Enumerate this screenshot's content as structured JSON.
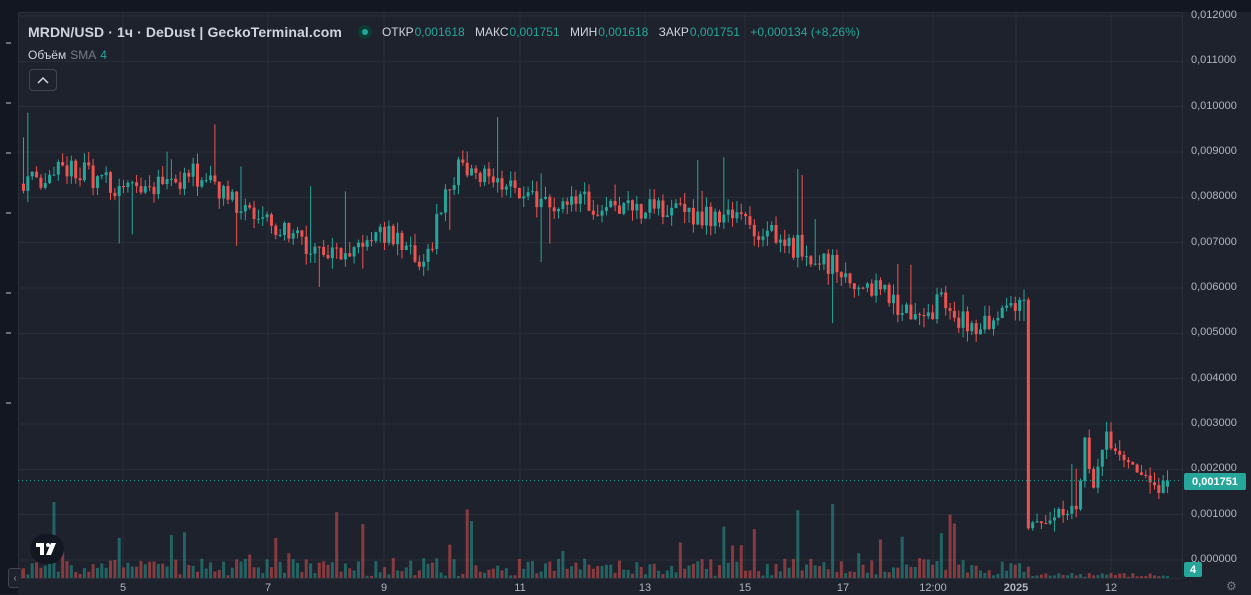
{
  "header": {
    "symbol_title": "MRDN/USD · 1ч · DeDust  |  GeckoTerminal.com",
    "ohlc": {
      "open_label": "ОТКР",
      "open": "0,001618",
      "high_label": "МАКС",
      "high": "0,001751",
      "low_label": "МИН",
      "low": "0,001618",
      "close_label": "ЗАКР",
      "close": "0,001751",
      "change": "+0,000134 (+8,26%)"
    }
  },
  "volume_legend": {
    "name": "Объём",
    "indicator": "SMA",
    "length": "4"
  },
  "price_axis": {
    "labels": [
      "0,012000",
      "0,011000",
      "0,010000",
      "0,009000",
      "0,008000",
      "0,007000",
      "0,006000",
      "0,005000",
      "0,004000",
      "0,003000",
      "0,002000",
      "0,001000",
      "0,000000"
    ],
    "last_price": "0,001751",
    "volume_badge": "4"
  },
  "time_axis": {
    "labels": [
      "5",
      "7",
      "9",
      "11",
      "13",
      "15",
      "17",
      "12:00",
      "2025",
      "12"
    ]
  },
  "colors": {
    "up": "#26a69a",
    "down": "#ef5350",
    "background": "#1e222d",
    "grid": "#2a2e39"
  },
  "icons": {
    "status": "market-open-dot",
    "collapse": "chevron-up-icon",
    "logo": "tradingview-logo-icon",
    "scroll": "chevron-left-icon",
    "settings": "gear-icon"
  },
  "chart_data": {
    "type": "candlestick",
    "symbol": "MRDN/USD",
    "interval": "1ч",
    "ylim": [
      0,
      0.012
    ],
    "last_close": 0.001751,
    "price_path": [
      {
        "t": 0,
        "v": 0.0083
      },
      {
        "t": 10,
        "v": 0.0087
      },
      {
        "t": 25,
        "v": 0.0081
      },
      {
        "t": 40,
        "v": 0.0085
      },
      {
        "t": 50,
        "v": 0.0077
      },
      {
        "t": 70,
        "v": 0.0068
      },
      {
        "t": 85,
        "v": 0.0072
      },
      {
        "t": 92,
        "v": 0.0066
      },
      {
        "t": 100,
        "v": 0.0087
      },
      {
        "t": 115,
        "v": 0.008
      },
      {
        "t": 135,
        "v": 0.0078
      },
      {
        "t": 160,
        "v": 0.0076
      },
      {
        "t": 178,
        "v": 0.0069
      },
      {
        "t": 190,
        "v": 0.0063
      },
      {
        "t": 205,
        "v": 0.0054
      },
      {
        "t": 212,
        "v": 0.0057
      },
      {
        "t": 218,
        "v": 0.005
      },
      {
        "t": 228,
        "v": 0.0055
      },
      {
        "t": 230,
        "v": 0.0057
      },
      {
        "t": 231,
        "v": 0.0007
      },
      {
        "t": 238,
        "v": 0.001
      },
      {
        "t": 242,
        "v": 0.0011
      },
      {
        "t": 244,
        "v": 0.0026
      },
      {
        "t": 246,
        "v": 0.0016
      },
      {
        "t": 249,
        "v": 0.0027
      },
      {
        "t": 252,
        "v": 0.0022
      },
      {
        "t": 258,
        "v": 0.0019
      },
      {
        "t": 261,
        "v": 0.0016
      },
      {
        "t": 263,
        "v": 0.00175
      }
    ]
  }
}
